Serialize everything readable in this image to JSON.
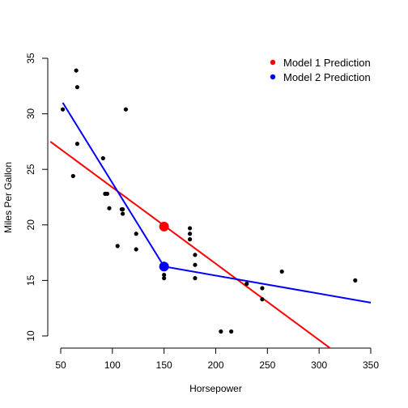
{
  "chart_data": {
    "type": "scatter",
    "xlabel": "Horsepower",
    "ylabel": "Miles Per Gallon",
    "xlim": [
      40,
      350
    ],
    "ylim": [
      9.5,
      35.5
    ],
    "x_ticks": [
      50,
      100,
      150,
      200,
      250,
      300,
      350
    ],
    "y_ticks": [
      10,
      15,
      20,
      25,
      30,
      35
    ],
    "legend_position": "top-right",
    "points": [
      {
        "x": 52,
        "y": 30.4
      },
      {
        "x": 62,
        "y": 24.4
      },
      {
        "x": 65,
        "y": 33.9
      },
      {
        "x": 66,
        "y": 32.4
      },
      {
        "x": 66,
        "y": 27.3
      },
      {
        "x": 91,
        "y": 26.0
      },
      {
        "x": 93,
        "y": 22.8
      },
      {
        "x": 95,
        "y": 22.8
      },
      {
        "x": 97,
        "y": 21.5
      },
      {
        "x": 105,
        "y": 18.1
      },
      {
        "x": 109,
        "y": 21.4
      },
      {
        "x": 110,
        "y": 21.0
      },
      {
        "x": 110,
        "y": 21.4
      },
      {
        "x": 113,
        "y": 30.4
      },
      {
        "x": 123,
        "y": 17.8
      },
      {
        "x": 123,
        "y": 19.2
      },
      {
        "x": 150,
        "y": 15.5
      },
      {
        "x": 150,
        "y": 15.2
      },
      {
        "x": 175,
        "y": 18.7
      },
      {
        "x": 175,
        "y": 19.2
      },
      {
        "x": 175,
        "y": 19.7
      },
      {
        "x": 180,
        "y": 16.4
      },
      {
        "x": 180,
        "y": 17.3
      },
      {
        "x": 180,
        "y": 15.2
      },
      {
        "x": 205,
        "y": 10.4
      },
      {
        "x": 215,
        "y": 10.4
      },
      {
        "x": 230,
        "y": 14.7
      },
      {
        "x": 245,
        "y": 13.3
      },
      {
        "x": 245,
        "y": 14.3
      },
      {
        "x": 264,
        "y": 15.8
      },
      {
        "x": 335,
        "y": 15.0
      }
    ],
    "series": [
      {
        "name": "Model 1 Prediction",
        "color": "#ff0000",
        "line": [
          [
            40,
            27.5
          ],
          [
            350,
            6.2
          ]
        ],
        "prediction": {
          "x": 150,
          "y": 19.85
        }
      },
      {
        "name": "Model 2 Prediction",
        "color": "#0000ff",
        "line": [
          [
            52,
            31.0
          ],
          [
            150,
            16.25
          ],
          [
            350,
            13.0
          ]
        ],
        "prediction": {
          "x": 150,
          "y": 16.25
        }
      }
    ]
  }
}
